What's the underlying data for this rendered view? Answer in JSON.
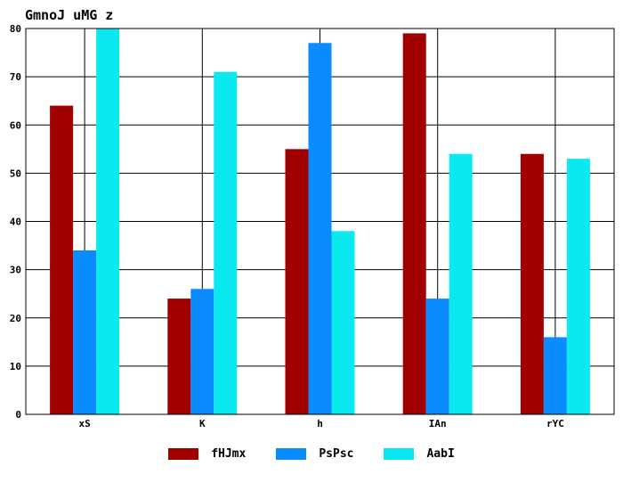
{
  "chart_data": {
    "type": "bar",
    "title": "GmnoJ uMG z",
    "xlabel": "",
    "ylabel": "",
    "categories": [
      "xS",
      "K",
      "h",
      "IAn",
      "rYC"
    ],
    "series": [
      {
        "name": "fHJmx",
        "color": "#a00000",
        "values": [
          64,
          24,
          55,
          79,
          54
        ]
      },
      {
        "name": "PsPsc",
        "color": "#0a8cff",
        "values": [
          34,
          26,
          77,
          24,
          16
        ]
      },
      {
        "name": "AabI",
        "color": "#0ae8f0",
        "values": [
          80,
          71,
          38,
          54,
          53
        ]
      }
    ],
    "ylim": [
      0,
      80
    ],
    "yticks": [
      0,
      10,
      20,
      30,
      40,
      50,
      60,
      70,
      80
    ],
    "grid": true,
    "legend_position": "bottom-center"
  }
}
